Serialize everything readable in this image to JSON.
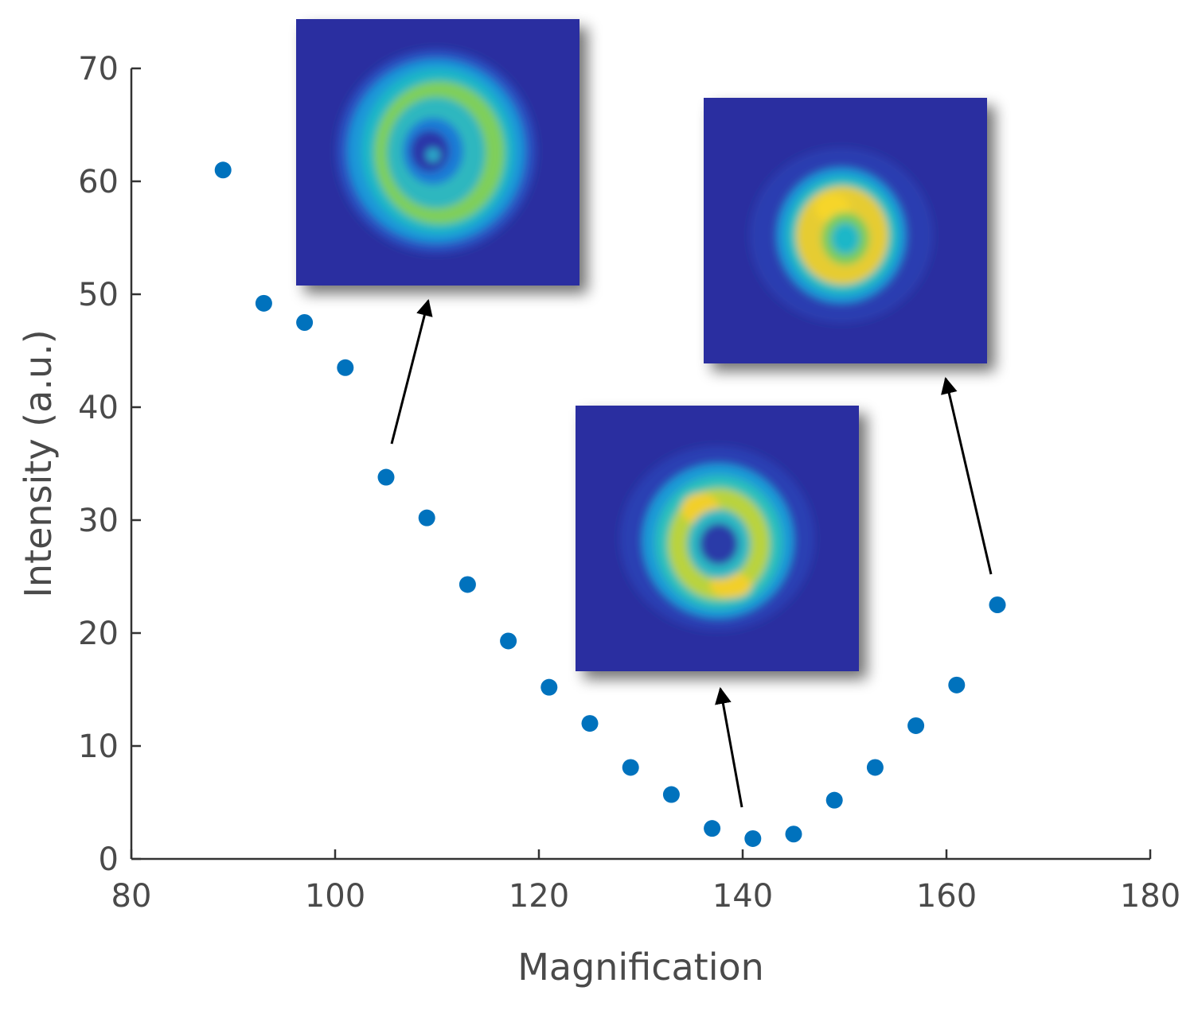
{
  "chart_data": {
    "type": "scatter",
    "title": "",
    "xlabel": "Magnification",
    "ylabel": "Intensity (a.u.)",
    "xlim": [
      80,
      180
    ],
    "ylim": [
      0,
      70
    ],
    "x_ticks": [
      80,
      100,
      120,
      140,
      160,
      180
    ],
    "y_ticks": [
      0,
      10,
      20,
      30,
      40,
      50,
      60,
      70
    ],
    "grid": false,
    "legend": "none",
    "marker_color": "#0072bd",
    "series": [
      {
        "points": [
          {
            "x": 89,
            "y": 61.0
          },
          {
            "x": 93,
            "y": 49.2
          },
          {
            "x": 97,
            "y": 47.5
          },
          {
            "x": 101,
            "y": 43.5
          },
          {
            "x": 105,
            "y": 33.8
          },
          {
            "x": 109,
            "y": 30.2
          },
          {
            "x": 113,
            "y": 24.3
          },
          {
            "x": 117,
            "y": 19.3
          },
          {
            "x": 121,
            "y": 15.2
          },
          {
            "x": 125,
            "y": 12.0
          },
          {
            "x": 129,
            "y": 8.1
          },
          {
            "x": 133,
            "y": 5.7
          },
          {
            "x": 137,
            "y": 2.7
          },
          {
            "x": 141,
            "y": 1.8
          },
          {
            "x": 145,
            "y": 2.2
          },
          {
            "x": 149,
            "y": 5.2
          },
          {
            "x": 153,
            "y": 8.1
          },
          {
            "x": 157,
            "y": 11.8
          },
          {
            "x": 161,
            "y": 15.4
          },
          {
            "x": 165,
            "y": 22.5
          }
        ]
      }
    ],
    "insets": [
      {
        "pointer_x": 105,
        "pointer_y": 33.8,
        "pattern": "ring-with-spot"
      },
      {
        "pointer_x": 141,
        "pointer_y": 1.8,
        "pattern": "ring-dark-center"
      },
      {
        "pointer_x": 165,
        "pointer_y": 22.5,
        "pattern": "ring-bright"
      }
    ],
    "colormap": {
      "background": "#2a2fa0",
      "low": "#2565d8",
      "mid": "#1fb0c8",
      "high": "#9ad23a",
      "peak": "#f5d02a"
    }
  }
}
